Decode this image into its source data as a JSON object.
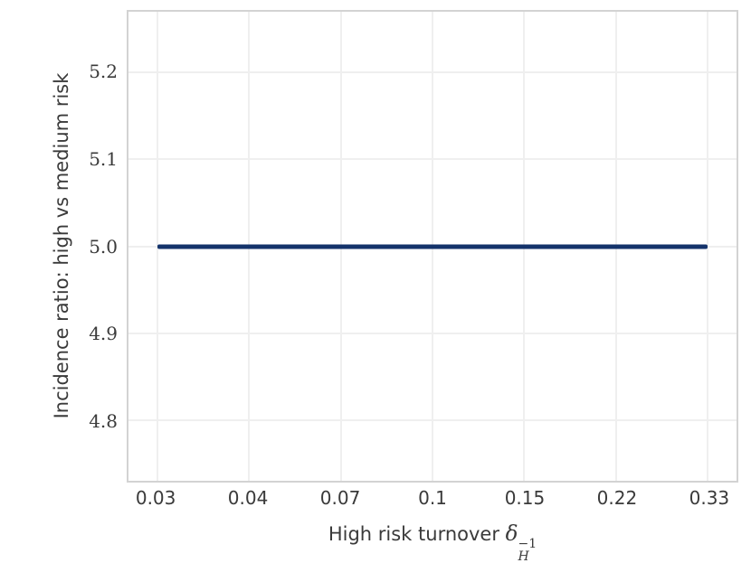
{
  "colors": {
    "line": "#14336B",
    "grid": "#EFEFEF",
    "spine": "#D3D3D3",
    "text": "#3A3A3A"
  },
  "chart_data": {
    "type": "line",
    "title": "",
    "xlabel_prefix": "High risk turnover",
    "xlabel_symbol": "δ",
    "xlabel_sub": "H",
    "xlabel_sup": "−1",
    "ylabel": "Incidence ratio: high vs medium risk",
    "x_scale": "log",
    "x": [
      0.03,
      0.0447,
      0.0667,
      0.0995,
      0.1484,
      0.2213,
      0.33
    ],
    "xticklabels": [
      "0.03",
      "0.04",
      "0.07",
      "0.1",
      "0.15",
      "0.22",
      "0.33"
    ],
    "series": [
      {
        "name": "incidence ratio high vs medium risk",
        "values": [
          5.0,
          5.0,
          5.0,
          5.0,
          5.0,
          5.0,
          5.0
        ]
      }
    ],
    "yticks": [
      4.8,
      4.9,
      5.0,
      5.1,
      5.2
    ],
    "yticklabels": [
      "4.8",
      "4.9",
      "5.0",
      "5.1",
      "5.2"
    ],
    "ylim": [
      4.73,
      5.27
    ],
    "grid": true,
    "legend": false
  }
}
